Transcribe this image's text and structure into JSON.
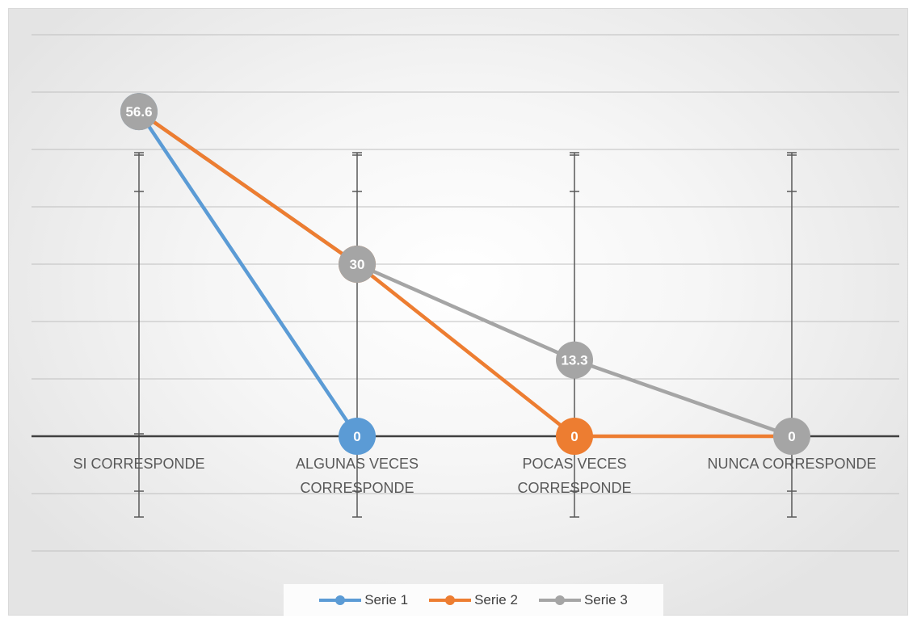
{
  "chart_data": {
    "type": "line",
    "categories": [
      "SI CORRESPONDE",
      "ALGUNAS VECES\nCORRESPONDE",
      "POCAS VECES\nCORRESPONDE",
      "NUNCA CORRESPONDE"
    ],
    "series": [
      {
        "name": "Serie 1",
        "color": "#5b9bd5",
        "values": [
          56.6,
          0,
          null,
          null
        ],
        "labels": [
          "56.6",
          "0",
          "",
          ""
        ]
      },
      {
        "name": "Serie 2",
        "color": "#ed7d31",
        "values": [
          56.6,
          30,
          0,
          0
        ],
        "labels": [
          "",
          "30",
          "0",
          ""
        ]
      },
      {
        "name": "Serie 3",
        "color": "#a5a5a5",
        "values": [
          56.6,
          30,
          13.3,
          0
        ],
        "labels": [
          "56.6",
          "30",
          "13.3",
          "0"
        ]
      }
    ],
    "ylim": [
      -20,
      75
    ],
    "grid": true,
    "error_bars": true,
    "legend_position": "bottom"
  }
}
